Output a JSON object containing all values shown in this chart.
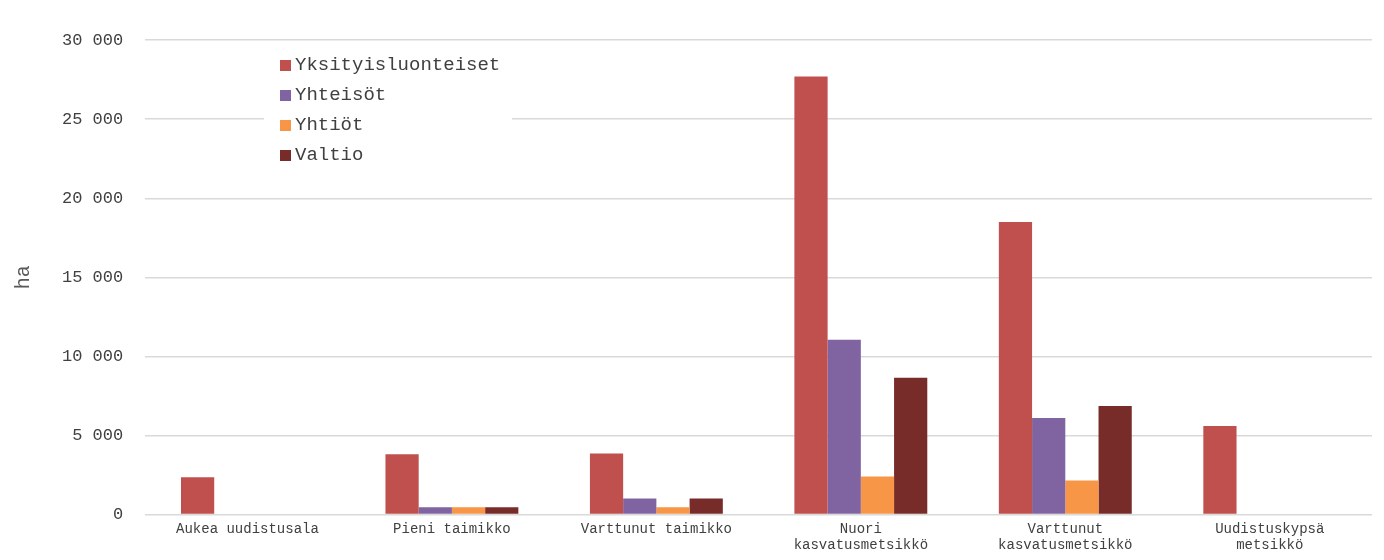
{
  "chart_data": {
    "type": "bar",
    "ylabel": "ha",
    "categories": [
      "Aukea uudistusala",
      "Pieni taimikko",
      "Varttunut taimikko",
      "Nuori kasvatusmetsikkö",
      "Varttunut kasvatusmetsikkö",
      "Uudistuskypsä metsikkö"
    ],
    "series": [
      {
        "name": "Yksityisluonteiset",
        "color": "#c0504d",
        "values": [
          2350,
          3800,
          3850,
          27700,
          18500,
          5600
        ]
      },
      {
        "name": "Yhteisöt",
        "color": "#8064a2",
        "values": [
          null,
          450,
          1000,
          11050,
          6100,
          null
        ]
      },
      {
        "name": "Yhtiöt",
        "color": "#f79646",
        "values": [
          null,
          450,
          450,
          2400,
          2150,
          null
        ]
      },
      {
        "name": "Valtio",
        "color": "#772c2a",
        "values": [
          null,
          450,
          1000,
          8650,
          6850,
          null
        ]
      }
    ],
    "ylim": [
      0,
      30000
    ],
    "yticks": [
      {
        "value": 0,
        "label": "0"
      },
      {
        "value": 5000,
        "label": "5 000"
      },
      {
        "value": 10000,
        "label": "10 000"
      },
      {
        "value": 15000,
        "label": "15 000"
      },
      {
        "value": 20000,
        "label": "20 000"
      },
      {
        "value": 25000,
        "label": "25 000"
      },
      {
        "value": 30000,
        "label": "30 000"
      }
    ],
    "grid": "y",
    "legend": "top left"
  }
}
